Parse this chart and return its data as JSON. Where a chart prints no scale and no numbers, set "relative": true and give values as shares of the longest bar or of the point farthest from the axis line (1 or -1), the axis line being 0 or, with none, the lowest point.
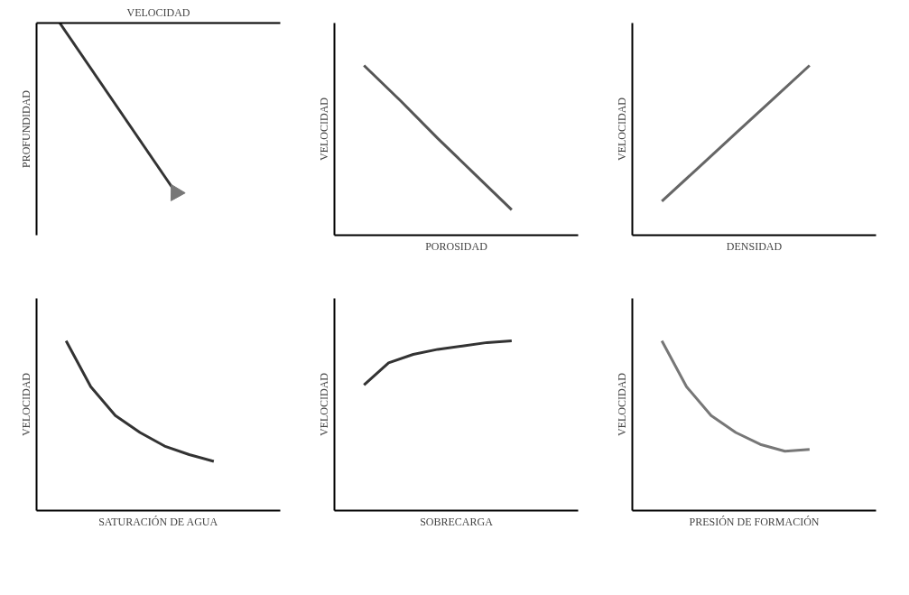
{
  "chart_data": [
    {
      "type": "line",
      "relative": true,
      "xlabel": "VELOCIDAD",
      "ylabel": "PROFUNDIDAD",
      "categories": [
        null,
        null
      ],
      "series": [
        {
          "color": "#333333",
          "values": [
            0,
            -1
          ]
        }
      ]
    },
    {
      "type": "line",
      "relative": true,
      "xlabel": "POROSIDAD",
      "ylabel": "VELOCIDAD",
      "categories": [
        null,
        null,
        null,
        null,
        null
      ],
      "series": [
        {
          "color": "#555555",
          "values": [
            1,
            0.79,
            0.57,
            0.36,
            0.15
          ]
        }
      ]
    },
    {
      "type": "line",
      "relative": true,
      "xlabel": "DENSIDAD",
      "ylabel": "VELOCIDAD",
      "categories": [
        null,
        null,
        null,
        null,
        null
      ],
      "series": [
        {
          "color": "#666666",
          "values": [
            0.2,
            0.4,
            0.6,
            0.8,
            1
          ]
        }
      ]
    },
    {
      "type": "line",
      "relative": true,
      "xlabel": "SATURACIÓN DE AGUA",
      "ylabel": "VELOCIDAD",
      "categories": [
        null,
        null,
        null,
        null,
        null,
        null,
        null
      ],
      "series": [
        {
          "color": "#333333",
          "values": [
            1,
            0.73,
            0.56,
            0.46,
            0.38,
            0.33,
            0.29
          ]
        }
      ]
    },
    {
      "type": "line",
      "relative": true,
      "xlabel": "SOBRECARGA",
      "ylabel": "VELOCIDAD",
      "categories": [
        null,
        null,
        null,
        null,
        null,
        null,
        null
      ],
      "series": [
        {
          "color": "#333333",
          "values": [
            0.74,
            0.87,
            0.92,
            0.95,
            0.97,
            0.99,
            1
          ]
        }
      ]
    },
    {
      "type": "line",
      "relative": true,
      "xlabel": "PRESIÓN DE FORMACIÓN",
      "ylabel": "VELOCIDAD",
      "categories": [
        null,
        null,
        null,
        null,
        null,
        null,
        null
      ],
      "series": [
        {
          "color": "#777777",
          "values": [
            1,
            0.73,
            0.56,
            0.46,
            0.39,
            0.35,
            0.36
          ]
        }
      ]
    }
  ]
}
